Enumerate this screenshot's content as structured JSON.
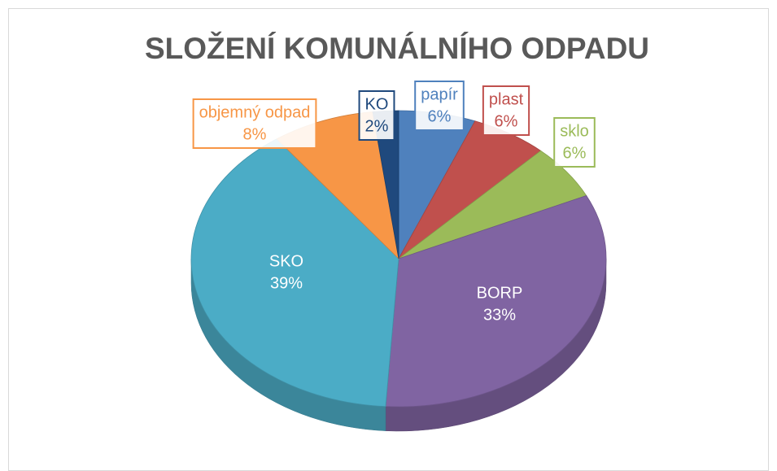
{
  "chart_data": {
    "type": "pie",
    "title": "SLOŽENÍ KOMUNÁLNÍHO ODPADU",
    "categories": [
      "papír",
      "plast",
      "sklo",
      "BORP",
      "SKO",
      "objemný odpad",
      "KO"
    ],
    "values": [
      6,
      6,
      6,
      33,
      39,
      8,
      2
    ],
    "value_labels": [
      "6%",
      "6%",
      "6%",
      "33%",
      "39%",
      "8%",
      "2%"
    ],
    "colors": [
      "#4f81bd",
      "#c0504d",
      "#9bbb59",
      "#8064a2",
      "#4bacc6",
      "#f79646",
      "#1f497d"
    ]
  }
}
